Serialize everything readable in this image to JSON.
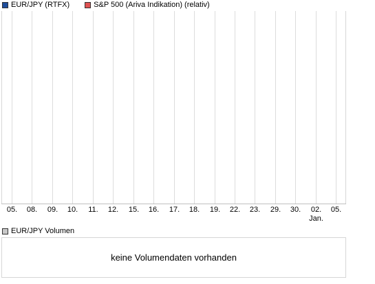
{
  "legend": {
    "items": [
      {
        "label": "EUR/JPY (RTFX)",
        "color": "#1f4e9c",
        "icon": "blue-square-icon"
      },
      {
        "label": "S&P 500 (Ariva Indikation) (relativ)",
        "color": "#e05252",
        "icon": "red-square-icon"
      }
    ]
  },
  "chart_data": {
    "type": "line",
    "title": "",
    "xlabel": "",
    "ylabel": "",
    "grid": true,
    "legend_position": "top-left",
    "x_tick_labels": [
      "05.",
      "08.",
      "09.",
      "10.",
      "11.",
      "12.",
      "15.",
      "16.",
      "17.",
      "18.",
      "19.",
      "22.",
      "23.",
      "29.",
      "30.",
      "02.",
      "05."
    ],
    "x_month_labels": [
      {
        "index": 15,
        "label": "Jan."
      }
    ],
    "series": [
      {
        "name": "EUR/JPY (RTFX)",
        "values": []
      },
      {
        "name": "S&P 500 (Ariva Indikation) (relativ)",
        "values": []
      }
    ]
  },
  "volume": {
    "legend_label": "EUR/JPY Volumen",
    "legend_color": "#c8c8c8",
    "message": "keine Volumendaten vorhanden"
  }
}
